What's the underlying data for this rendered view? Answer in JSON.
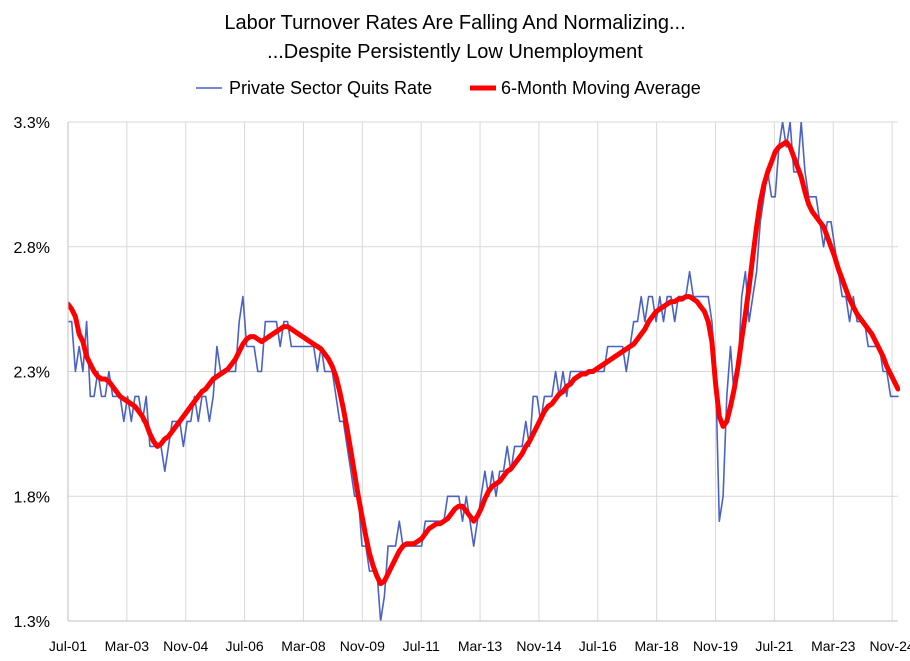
{
  "chart_data": {
    "type": "line",
    "title": [
      "Labor Turnover Rates Are Falling And Normalizing...",
      "...Despite Persistently Low Unemployment"
    ],
    "xlabel": "",
    "ylabel": "",
    "ylim": [
      1.3,
      3.3
    ],
    "yticks": [
      1.3,
      1.8,
      2.3,
      2.8,
      3.3
    ],
    "ytick_labels": [
      "1.3%",
      "1.8%",
      "2.3%",
      "2.8%",
      "3.3%"
    ],
    "x_start": "2001-07",
    "x_end": "2025-01",
    "xtick_labels": [
      "Jul-01",
      "Mar-03",
      "Nov-04",
      "Jul-06",
      "Mar-08",
      "Nov-09",
      "Jul-11",
      "Mar-13",
      "Nov-14",
      "Jul-16",
      "Mar-18",
      "Nov-19",
      "Jul-21",
      "Mar-23",
      "Nov-24"
    ],
    "grid": true,
    "legend_position": "top",
    "series": [
      {
        "name": "Private Sector Quits Rate",
        "color": "#4a62c4",
        "style": "thin",
        "values": [
          2.5,
          2.5,
          2.3,
          2.4,
          2.3,
          2.5,
          2.2,
          2.2,
          2.3,
          2.2,
          2.2,
          2.3,
          2.2,
          2.2,
          2.2,
          2.1,
          2.2,
          2.1,
          2.2,
          2.2,
          2.1,
          2.2,
          2.0,
          2.0,
          2.0,
          2.0,
          1.9,
          2.0,
          2.1,
          2.1,
          2.1,
          2.0,
          2.1,
          2.1,
          2.2,
          2.1,
          2.2,
          2.2,
          2.1,
          2.2,
          2.4,
          2.3,
          2.3,
          2.3,
          2.3,
          2.3,
          2.5,
          2.6,
          2.4,
          2.4,
          2.4,
          2.3,
          2.3,
          2.5,
          2.5,
          2.5,
          2.5,
          2.4,
          2.5,
          2.5,
          2.4,
          2.4,
          2.4,
          2.4,
          2.4,
          2.4,
          2.4,
          2.3,
          2.4,
          2.3,
          2.3,
          2.3,
          2.2,
          2.1,
          2.1,
          2.0,
          1.9,
          1.8,
          1.8,
          1.6,
          1.6,
          1.5,
          1.5,
          1.5,
          1.3,
          1.4,
          1.6,
          1.6,
          1.6,
          1.7,
          1.6,
          1.6,
          1.6,
          1.6,
          1.6,
          1.6,
          1.7,
          1.7,
          1.7,
          1.7,
          1.7,
          1.7,
          1.8,
          1.8,
          1.8,
          1.8,
          1.7,
          1.8,
          1.7,
          1.6,
          1.7,
          1.8,
          1.9,
          1.8,
          1.9,
          1.8,
          1.9,
          1.9,
          2.0,
          1.9,
          2.0,
          2.0,
          2.0,
          2.1,
          2.0,
          2.2,
          2.2,
          2.1,
          2.2,
          2.2,
          2.2,
          2.3,
          2.2,
          2.3,
          2.2,
          2.3,
          2.3,
          2.3,
          2.3,
          2.3,
          2.3,
          2.3,
          2.3,
          2.3,
          2.3,
          2.4,
          2.4,
          2.4,
          2.4,
          2.4,
          2.3,
          2.4,
          2.5,
          2.5,
          2.6,
          2.5,
          2.6,
          2.6,
          2.5,
          2.6,
          2.5,
          2.6,
          2.6,
          2.5,
          2.6,
          2.6,
          2.6,
          2.7,
          2.6,
          2.6,
          2.6,
          2.6,
          2.6,
          2.5,
          2.3,
          1.7,
          1.8,
          2.2,
          2.4,
          2.2,
          2.3,
          2.6,
          2.7,
          2.5,
          2.6,
          2.7,
          2.9,
          3.0,
          3.1,
          3.0,
          3.0,
          3.2,
          3.3,
          3.2,
          3.3,
          3.1,
          3.1,
          3.3,
          3.1,
          3.0,
          3.0,
          3.0,
          2.9,
          2.8,
          2.9,
          2.9,
          2.8,
          2.7,
          2.6,
          2.6,
          2.5,
          2.6,
          2.5,
          2.5,
          2.5,
          2.4,
          2.4,
          2.4,
          2.4,
          2.3,
          2.3,
          2.2,
          2.2,
          2.2
        ]
      },
      {
        "name": "6-Month Moving Average",
        "color": "#ff0000",
        "style": "thick",
        "values": [
          2.57,
          2.55,
          2.52,
          2.45,
          2.42,
          2.36,
          2.33,
          2.3,
          2.28,
          2.27,
          2.27,
          2.26,
          2.24,
          2.22,
          2.2,
          2.19,
          2.18,
          2.17,
          2.16,
          2.14,
          2.12,
          2.09,
          2.05,
          2.02,
          2.0,
          2.01,
          2.03,
          2.04,
          2.06,
          2.08,
          2.1,
          2.12,
          2.14,
          2.16,
          2.18,
          2.2,
          2.22,
          2.23,
          2.25,
          2.27,
          2.28,
          2.29,
          2.3,
          2.31,
          2.33,
          2.35,
          2.38,
          2.41,
          2.43,
          2.44,
          2.44,
          2.43,
          2.42,
          2.43,
          2.44,
          2.45,
          2.46,
          2.47,
          2.48,
          2.48,
          2.47,
          2.46,
          2.45,
          2.44,
          2.43,
          2.42,
          2.41,
          2.4,
          2.39,
          2.37,
          2.35,
          2.32,
          2.28,
          2.22,
          2.15,
          2.07,
          1.98,
          1.89,
          1.8,
          1.72,
          1.64,
          1.57,
          1.52,
          1.48,
          1.45,
          1.46,
          1.49,
          1.52,
          1.55,
          1.58,
          1.6,
          1.61,
          1.61,
          1.61,
          1.62,
          1.63,
          1.65,
          1.67,
          1.68,
          1.69,
          1.69,
          1.7,
          1.71,
          1.73,
          1.75,
          1.76,
          1.76,
          1.74,
          1.72,
          1.7,
          1.72,
          1.75,
          1.79,
          1.82,
          1.84,
          1.85,
          1.86,
          1.88,
          1.9,
          1.91,
          1.93,
          1.95,
          1.97,
          2.0,
          2.02,
          2.05,
          2.08,
          2.11,
          2.14,
          2.16,
          2.17,
          2.19,
          2.21,
          2.22,
          2.24,
          2.25,
          2.27,
          2.28,
          2.29,
          2.29,
          2.3,
          2.3,
          2.31,
          2.32,
          2.33,
          2.34,
          2.35,
          2.36,
          2.37,
          2.38,
          2.39,
          2.4,
          2.41,
          2.43,
          2.45,
          2.47,
          2.5,
          2.52,
          2.54,
          2.55,
          2.56,
          2.57,
          2.58,
          2.58,
          2.59,
          2.59,
          2.6,
          2.6,
          2.59,
          2.58,
          2.56,
          2.54,
          2.5,
          2.42,
          2.25,
          2.12,
          2.08,
          2.1,
          2.16,
          2.23,
          2.32,
          2.43,
          2.53,
          2.64,
          2.76,
          2.88,
          2.98,
          3.05,
          3.1,
          3.14,
          3.18,
          3.2,
          3.21,
          3.22,
          3.2,
          3.16,
          3.12,
          3.08,
          3.02,
          2.97,
          2.94,
          2.92,
          2.9,
          2.88,
          2.84,
          2.8,
          2.76,
          2.71,
          2.67,
          2.63,
          2.59,
          2.56,
          2.53,
          2.51,
          2.49,
          2.47,
          2.45,
          2.42,
          2.39,
          2.36,
          2.32,
          2.29,
          2.26,
          2.23
        ]
      }
    ]
  }
}
